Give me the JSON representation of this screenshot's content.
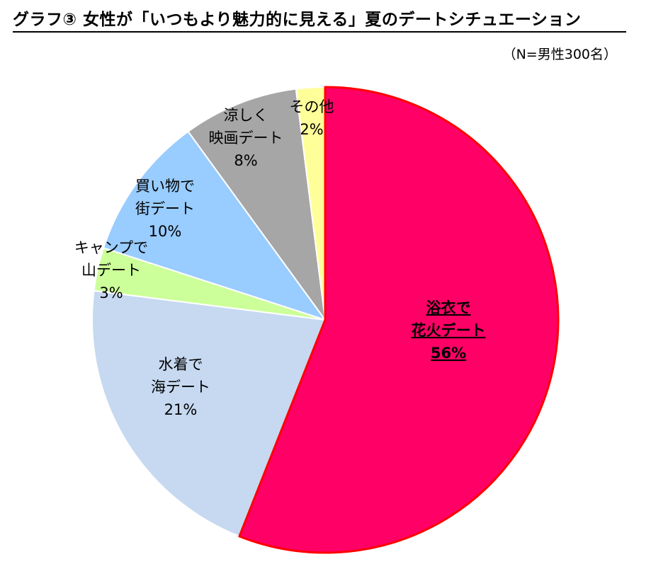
{
  "chart_data": {
    "type": "pie",
    "title": "グラフ③ 女性が「いつもより魅力的に見える」夏のデートシチュエーション",
    "note": "（N=男性300名）",
    "start_angle_deg": 0,
    "direction": "clockwise",
    "slices": [
      {
        "label_lines": [
          "浴衣で",
          "花火デート"
        ],
        "value": 56,
        "value_label": "56%",
        "color": "#ff0066",
        "stroke": "#ff0000",
        "highlight": true
      },
      {
        "label_lines": [
          "水着で",
          "海デート"
        ],
        "value": 21,
        "value_label": "21%",
        "color": "#c6d9f1",
        "stroke": "#ffffff",
        "highlight": false
      },
      {
        "label_lines": [
          "キャンプで",
          "山デート"
        ],
        "value": 3,
        "value_label": "3%",
        "color": "#ccff99",
        "stroke": "#ffffff",
        "highlight": false
      },
      {
        "label_lines": [
          "買い物で",
          "街デート"
        ],
        "value": 10,
        "value_label": "10%",
        "color": "#99ccff",
        "stroke": "#ffffff",
        "highlight": false
      },
      {
        "label_lines": [
          "涼しく",
          "映画デート"
        ],
        "value": 8,
        "value_label": "8%",
        "color": "#a6a6a6",
        "stroke": "#ffffff",
        "highlight": false
      },
      {
        "label_lines": [
          "その他"
        ],
        "value": 2,
        "value_label": "2%",
        "color": "#ffff99",
        "stroke": "#ffffff",
        "highlight": false
      }
    ]
  }
}
